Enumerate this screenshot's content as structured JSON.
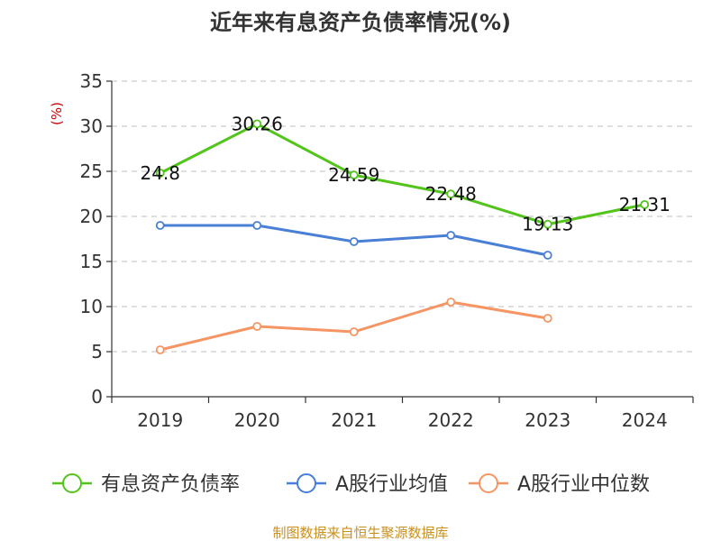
{
  "chart_data": {
    "type": "line",
    "title": "近年来有息资产负债率情况(%)",
    "ylabel": "(%)",
    "xlabel": "",
    "categories": [
      "2019",
      "2020",
      "2021",
      "2022",
      "2023",
      "2024"
    ],
    "ylim": [
      0,
      35
    ],
    "yticks": [
      0,
      5,
      10,
      15,
      20,
      25,
      30,
      35
    ],
    "grid": true,
    "legend_position": "bottom",
    "series": [
      {
        "name": "有息资产负债率",
        "color": "#52c41a",
        "values": [
          24.8,
          30.26,
          24.59,
          22.48,
          19.13,
          21.31
        ],
        "labels": [
          "24.8",
          "30.26",
          "24.59",
          "22.48",
          "19.13",
          "21.31"
        ]
      },
      {
        "name": "A股行业均值",
        "color": "#4a7fd6",
        "values": [
          19.0,
          19.0,
          17.2,
          17.9,
          15.7,
          null
        ],
        "labels": []
      },
      {
        "name": "A股行业中位数",
        "color": "#f59563",
        "values": [
          5.2,
          7.8,
          7.2,
          10.5,
          8.7,
          null
        ],
        "labels": []
      }
    ]
  },
  "source": "制图数据来自恒生聚源数据库"
}
